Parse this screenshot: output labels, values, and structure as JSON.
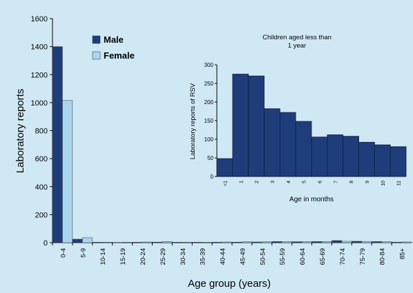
{
  "chart_data": [
    {
      "id": "main",
      "type": "bar",
      "xlabel": "Age group (years)",
      "ylabel": "Laboratory reports",
      "ylim": [
        0,
        1600
      ],
      "yticks": [
        0,
        200,
        400,
        600,
        800,
        1000,
        1200,
        1400,
        1600
      ],
      "categories": [
        "0-4",
        "5-9",
        "10-14",
        "15-19",
        "20-24",
        "25-29",
        "30-34",
        "35-39",
        "40-44",
        "45-49",
        "50-54",
        "55-59",
        "60-64",
        "65-69",
        "70-74",
        "75-79",
        "80-84",
        "85+"
      ],
      "legend_position": "top-left",
      "series": [
        {
          "name": "Male",
          "color": "#1f3d7a",
          "values": [
            1400,
            25,
            3,
            2,
            3,
            4,
            3,
            3,
            4,
            4,
            5,
            8,
            7,
            8,
            15,
            10,
            8,
            4
          ]
        },
        {
          "name": "Female",
          "color": "#a9d6ee",
          "values": [
            1015,
            35,
            4,
            3,
            5,
            8,
            4,
            3,
            5,
            6,
            6,
            7,
            8,
            8,
            10,
            9,
            7,
            5
          ]
        }
      ]
    },
    {
      "id": "inset",
      "type": "bar",
      "title": "Children aged less than 1 year",
      "xlabel": "Age in months",
      "ylabel": "Laboratory reports of RSV",
      "ylim": [
        0,
        300
      ],
      "yticks": [
        0,
        50,
        100,
        150,
        200,
        250,
        300
      ],
      "categories": [
        "<1",
        "1",
        "2",
        "3",
        "4",
        "5",
        "6",
        "7",
        "8",
        "9",
        "10",
        "11"
      ],
      "series": [
        {
          "color": "#1f3d7a",
          "values": [
            48,
            275,
            270,
            182,
            172,
            148,
            106,
            112,
            108,
            92,
            85,
            80
          ]
        }
      ]
    }
  ]
}
